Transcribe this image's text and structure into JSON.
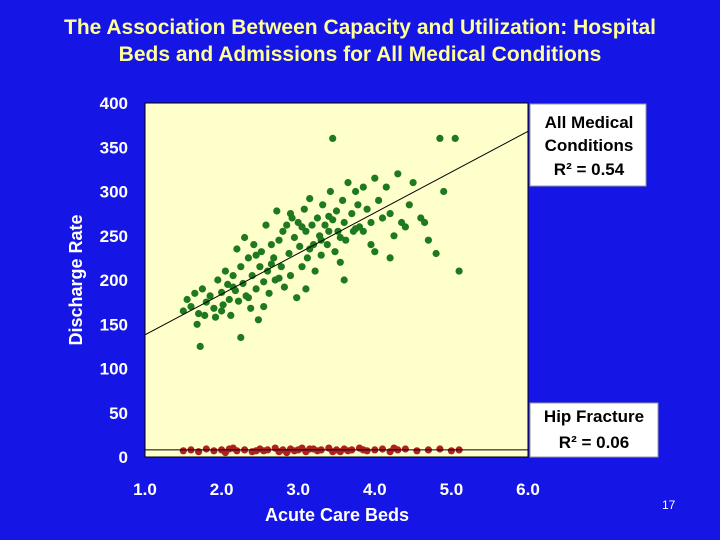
{
  "slide": {
    "title_line1": "The Association Between Capacity and Utilization:  Hospital",
    "title_line2": "Beds and Admissions for All Medical Conditions",
    "page_number": "17"
  },
  "colors": {
    "background": "#1515e6",
    "title": "#ffff99",
    "plot_area": "#ffffcc",
    "medical_points": "#1f7a1f",
    "hip_points": "#b02020",
    "regression_line": "#000000"
  },
  "chart_data": {
    "type": "scatter",
    "title": "The Association Between Capacity and Utilization: Hospital Beds and Admissions for All Medical Conditions",
    "xlabel": "Acute Care Beds",
    "ylabel": "Discharge Rate",
    "xlim": [
      1.0,
      6.0
    ],
    "ylim": [
      0,
      400
    ],
    "x_ticks": [
      "1.0",
      "2.0",
      "3.0",
      "4.0",
      "5.0",
      "6.0"
    ],
    "y_ticks": [
      "0",
      "50",
      "100",
      "150",
      "200",
      "250",
      "300",
      "350",
      "400"
    ],
    "grid": false,
    "series": [
      {
        "name": "All Medical Conditions",
        "annotation": [
          "All Medical",
          "Conditions",
          "R² = 0.54"
        ],
        "r_squared": 0.54,
        "trendline": {
          "x": [
            1.0,
            6.0
          ],
          "y": [
            138,
            368
          ]
        },
        "points": [
          [
            1.5,
            165
          ],
          [
            1.55,
            178
          ],
          [
            1.6,
            170
          ],
          [
            1.65,
            185
          ],
          [
            1.7,
            162
          ],
          [
            1.72,
            125
          ],
          [
            1.75,
            190
          ],
          [
            1.8,
            175
          ],
          [
            1.85,
            182
          ],
          [
            1.9,
            168
          ],
          [
            1.92,
            158
          ],
          [
            1.95,
            200
          ],
          [
            2.0,
            186
          ],
          [
            2.02,
            172
          ],
          [
            2.05,
            210
          ],
          [
            2.08,
            195
          ],
          [
            2.1,
            178
          ],
          [
            2.12,
            160
          ],
          [
            2.15,
            205
          ],
          [
            2.18,
            188
          ],
          [
            2.2,
            235
          ],
          [
            2.22,
            176
          ],
          [
            2.25,
            215
          ],
          [
            2.28,
            196
          ],
          [
            2.3,
            248
          ],
          [
            2.32,
            182
          ],
          [
            2.35,
            225
          ],
          [
            2.38,
            168
          ],
          [
            2.4,
            205
          ],
          [
            2.42,
            240
          ],
          [
            2.45,
            190
          ],
          [
            2.48,
            155
          ],
          [
            2.5,
            215
          ],
          [
            2.52,
            232
          ],
          [
            2.55,
            198
          ],
          [
            2.58,
            262
          ],
          [
            2.6,
            210
          ],
          [
            2.62,
            185
          ],
          [
            2.65,
            240
          ],
          [
            2.68,
            225
          ],
          [
            2.7,
            200
          ],
          [
            2.72,
            278
          ],
          [
            2.75,
            245
          ],
          [
            2.78,
            215
          ],
          [
            2.8,
            255
          ],
          [
            2.82,
            192
          ],
          [
            2.85,
            262
          ],
          [
            2.88,
            230
          ],
          [
            2.9,
            205
          ],
          [
            2.92,
            270
          ],
          [
            2.95,
            248
          ],
          [
            2.98,
            180
          ],
          [
            3.0,
            265
          ],
          [
            3.02,
            238
          ],
          [
            3.05,
            215
          ],
          [
            3.08,
            280
          ],
          [
            3.1,
            255
          ],
          [
            3.12,
            225
          ],
          [
            3.15,
            292
          ],
          [
            3.18,
            262
          ],
          [
            3.2,
            240
          ],
          [
            3.22,
            210
          ],
          [
            3.25,
            270
          ],
          [
            3.28,
            250
          ],
          [
            3.3,
            228
          ],
          [
            3.32,
            285
          ],
          [
            3.35,
            262
          ],
          [
            3.38,
            240
          ],
          [
            3.4,
            255
          ],
          [
            3.42,
            300
          ],
          [
            3.45,
            268
          ],
          [
            3.48,
            232
          ],
          [
            3.5,
            278
          ],
          [
            3.52,
            255
          ],
          [
            3.55,
            248
          ],
          [
            3.58,
            290
          ],
          [
            3.6,
            265
          ],
          [
            3.62,
            245
          ],
          [
            3.65,
            310
          ],
          [
            3.7,
            275
          ],
          [
            3.72,
            255
          ],
          [
            3.75,
            300
          ],
          [
            3.78,
            285
          ],
          [
            3.8,
            260
          ],
          [
            3.85,
            305
          ],
          [
            3.9,
            280
          ],
          [
            3.95,
            265
          ],
          [
            4.0,
            315
          ],
          [
            4.05,
            290
          ],
          [
            4.1,
            270
          ],
          [
            4.15,
            305
          ],
          [
            4.2,
            275
          ],
          [
            4.25,
            250
          ],
          [
            4.3,
            320
          ],
          [
            4.4,
            260
          ],
          [
            4.5,
            310
          ],
          [
            4.6,
            270
          ],
          [
            4.7,
            245
          ],
          [
            4.8,
            230
          ],
          [
            4.9,
            300
          ],
          [
            3.45,
            360
          ],
          [
            4.85,
            360
          ],
          [
            5.05,
            360
          ],
          [
            5.1,
            210
          ],
          [
            1.68,
            150
          ],
          [
            2.25,
            135
          ],
          [
            2.55,
            170
          ],
          [
            3.1,
            190
          ],
          [
            3.6,
            200
          ],
          [
            4.0,
            232
          ],
          [
            4.2,
            225
          ],
          [
            2.0,
            165
          ],
          [
            2.35,
            180
          ],
          [
            2.9,
            275
          ],
          [
            3.3,
            245
          ],
          [
            3.85,
            255
          ],
          [
            4.45,
            285
          ],
          [
            1.78,
            160
          ],
          [
            2.15,
            192
          ],
          [
            2.65,
            218
          ],
          [
            3.15,
            235
          ],
          [
            3.55,
            220
          ],
          [
            3.95,
            240
          ],
          [
            4.35,
            265
          ],
          [
            4.65,
            265
          ],
          [
            2.45,
            228
          ],
          [
            2.75,
            202
          ],
          [
            3.05,
            260
          ],
          [
            3.4,
            272
          ],
          [
            3.75,
            258
          ]
        ]
      },
      {
        "name": "Hip Fracture",
        "annotation": [
          "Hip Fracture",
          "R² = 0.06"
        ],
        "r_squared": 0.06,
        "trendline": {
          "x": [
            1.0,
            6.0
          ],
          "y": [
            8,
            8
          ]
        },
        "points": [
          [
            1.5,
            7
          ],
          [
            1.6,
            8
          ],
          [
            1.7,
            6
          ],
          [
            1.8,
            9
          ],
          [
            1.9,
            7
          ],
          [
            2.0,
            8
          ],
          [
            2.05,
            5
          ],
          [
            2.1,
            9
          ],
          [
            2.2,
            7
          ],
          [
            2.3,
            8
          ],
          [
            2.4,
            6
          ],
          [
            2.5,
            9
          ],
          [
            2.55,
            7
          ],
          [
            2.6,
            8
          ],
          [
            2.7,
            10
          ],
          [
            2.75,
            6
          ],
          [
            2.8,
            8
          ],
          [
            2.9,
            9
          ],
          [
            2.95,
            7
          ],
          [
            3.0,
            8
          ],
          [
            3.05,
            10
          ],
          [
            3.1,
            6
          ],
          [
            3.2,
            9
          ],
          [
            3.25,
            7
          ],
          [
            3.3,
            8
          ],
          [
            3.4,
            10
          ],
          [
            3.45,
            6
          ],
          [
            3.5,
            8
          ],
          [
            3.6,
            9
          ],
          [
            3.65,
            7
          ],
          [
            3.7,
            8
          ],
          [
            3.8,
            10
          ],
          [
            3.9,
            7
          ],
          [
            4.0,
            8
          ],
          [
            4.1,
            9
          ],
          [
            4.2,
            6
          ],
          [
            4.3,
            8
          ],
          [
            4.4,
            9
          ],
          [
            4.55,
            7
          ],
          [
            4.7,
            8
          ],
          [
            4.85,
            9
          ],
          [
            5.0,
            7
          ],
          [
            5.1,
            8
          ],
          [
            2.15,
            10
          ],
          [
            2.45,
            7
          ],
          [
            2.85,
            5
          ],
          [
            3.15,
            9
          ],
          [
            3.55,
            6
          ],
          [
            3.85,
            8
          ],
          [
            4.25,
            10
          ]
        ]
      }
    ]
  }
}
